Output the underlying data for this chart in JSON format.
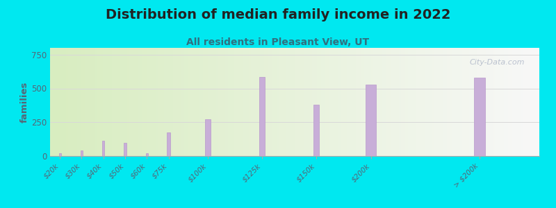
{
  "title": "Distribution of median family income in 2022",
  "subtitle": "All residents in Pleasant View, UT",
  "categories": [
    "$20k",
    "$30k",
    "$40k",
    "$50k",
    "$60k",
    "$75k",
    "$100k",
    "$125k",
    "$150k",
    "$200k",
    "> $200k"
  ],
  "values": [
    18,
    42,
    115,
    95,
    18,
    175,
    270,
    585,
    380,
    530,
    580
  ],
  "bar_color": "#c8aed8",
  "bar_edge_color": "#b898cc",
  "ylabel": "families",
  "ylim": [
    0,
    800
  ],
  "yticks": [
    0,
    250,
    500,
    750
  ],
  "background_color": "#00e8f0",
  "plot_bg_left": "#d8edc0",
  "plot_bg_right": "#f8f8f8",
  "title_fontsize": 14,
  "subtitle_fontsize": 10,
  "title_color": "#222222",
  "subtitle_color": "#307080",
  "watermark": "City-Data.com",
  "watermark_color": "#b0b8c8",
  "grid_color": "#d8d8d8",
  "tick_color": "#556677",
  "ylabel_color": "#556677",
  "bar_widths": [
    1,
    1,
    1,
    1,
    1,
    1.5,
    2.5,
    2.5,
    2.5,
    5,
    5
  ],
  "bar_lefts": [
    19.5,
    29.5,
    39.5,
    49.5,
    59.5,
    69.5,
    87.5,
    112.5,
    137.5,
    162.5,
    212.5
  ],
  "xmin": 15,
  "xmax": 240
}
